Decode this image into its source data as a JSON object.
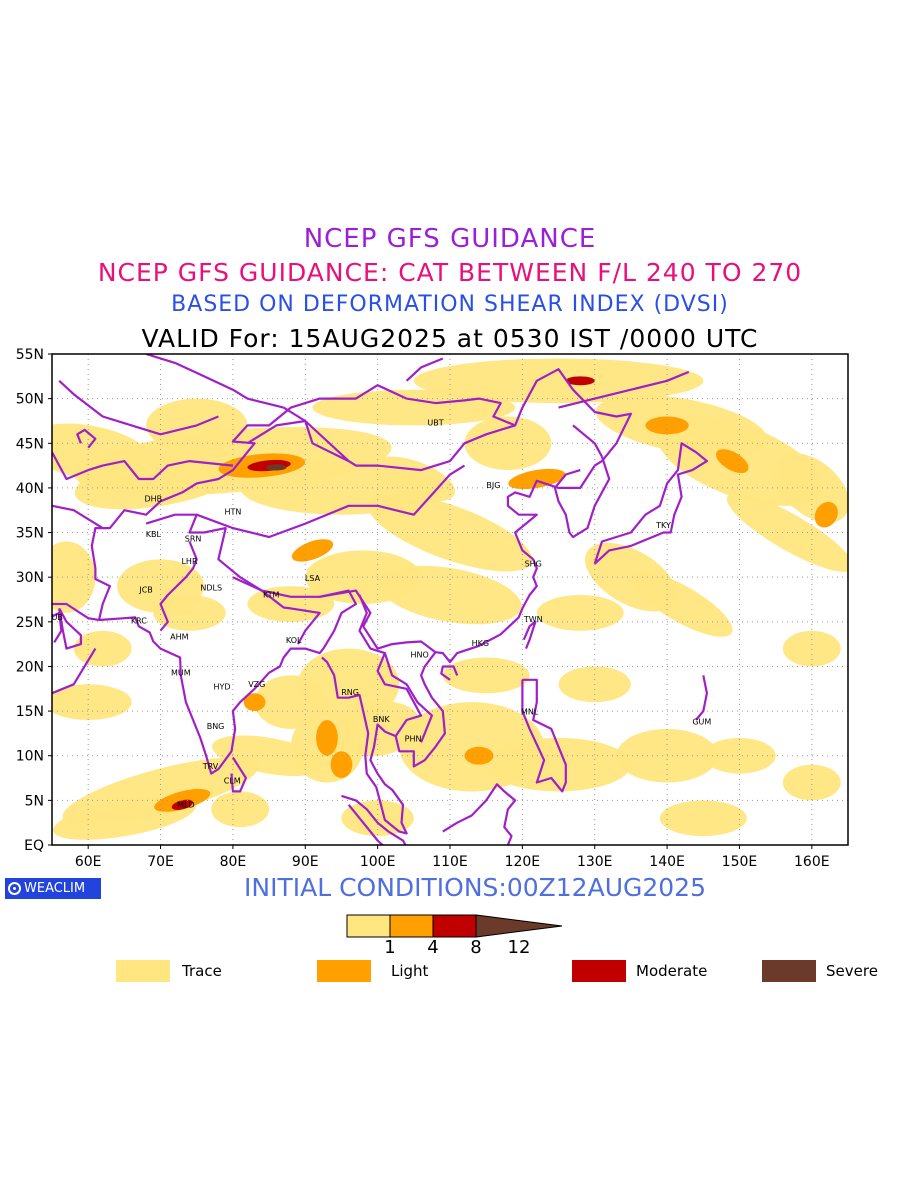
{
  "titles": {
    "line1": "NCEP GFS GUIDANCE",
    "line2": "NCEP GFS GUIDANCE: CAT BETWEEN F/L 240 TO 270",
    "line3": "BASED ON DEFORMATION SHEAR INDEX (DVSI)",
    "line4": "VALID For: 15AUG2025 at 0530 IST /0000 UTC"
  },
  "map": {
    "lat_labels": [
      "55N",
      "50N",
      "45N",
      "40N",
      "35N",
      "30N",
      "25N",
      "20N",
      "15N",
      "10N",
      "5N",
      "EQ"
    ],
    "lon_labels": [
      "60E",
      "70E",
      "80E",
      "90E",
      "100E",
      "110E",
      "120E",
      "130E",
      "140E",
      "150E",
      "160E"
    ],
    "extent": {
      "lon_min": 55,
      "lon_max": 165,
      "lat_min": 0,
      "lat_max": 55
    },
    "stations": [
      {
        "code": "UBT",
        "lon": 108,
        "lat": 47
      },
      {
        "code": "BJG",
        "lon": 116,
        "lat": 40
      },
      {
        "code": "TKY",
        "lon": 139.5,
        "lat": 35.5
      },
      {
        "code": "DHB",
        "lon": 69,
        "lat": 38.5
      },
      {
        "code": "HTN",
        "lon": 80,
        "lat": 37
      },
      {
        "code": "KBL",
        "lon": 69,
        "lat": 34.5
      },
      {
        "code": "SRN",
        "lon": 74.5,
        "lat": 34
      },
      {
        "code": "LHR",
        "lon": 74,
        "lat": 31.5
      },
      {
        "code": "SHG",
        "lon": 121.5,
        "lat": 31.2
      },
      {
        "code": "LSA",
        "lon": 91,
        "lat": 29.6
      },
      {
        "code": "JCB",
        "lon": 68,
        "lat": 28.3
      },
      {
        "code": "NDLS",
        "lon": 77,
        "lat": 28.5
      },
      {
        "code": "KTM",
        "lon": 85.3,
        "lat": 27.7
      },
      {
        "code": "DUB",
        "lon": 55.3,
        "lat": 25.2
      },
      {
        "code": "TWN",
        "lon": 121.5,
        "lat": 25
      },
      {
        "code": "KRC",
        "lon": 67,
        "lat": 24.8
      },
      {
        "code": "AHM",
        "lon": 72.6,
        "lat": 23
      },
      {
        "code": "KOL",
        "lon": 88.4,
        "lat": 22.6
      },
      {
        "code": "HKG",
        "lon": 114.2,
        "lat": 22.3
      },
      {
        "code": "HNO",
        "lon": 105.8,
        "lat": 21
      },
      {
        "code": "MUM",
        "lon": 72.8,
        "lat": 19
      },
      {
        "code": "HYD",
        "lon": 78.5,
        "lat": 17.4
      },
      {
        "code": "VZG",
        "lon": 83.3,
        "lat": 17.7
      },
      {
        "code": "RNG",
        "lon": 96.2,
        "lat": 16.8
      },
      {
        "code": "MNL",
        "lon": 121,
        "lat": 14.6
      },
      {
        "code": "BNK",
        "lon": 100.5,
        "lat": 13.8
      },
      {
        "code": "GUM",
        "lon": 144.8,
        "lat": 13.5
      },
      {
        "code": "BNG",
        "lon": 77.6,
        "lat": 13
      },
      {
        "code": "PHN",
        "lon": 104.9,
        "lat": 11.6
      },
      {
        "code": "TRV",
        "lon": 76.9,
        "lat": 8.5
      },
      {
        "code": "CLM",
        "lon": 79.9,
        "lat": 6.9
      },
      {
        "code": "MLD",
        "lon": 73.5,
        "lat": 4.2
      }
    ],
    "colors": {
      "trace": "#ffe680",
      "light": "#ffa000",
      "moderate": "#c00000",
      "severe": "#6b3a2a",
      "boundary": "#a020c8",
      "grid": "#999999"
    }
  },
  "logo": {
    "text": "WEACLIM"
  },
  "initial_conditions": "INITIAL CONDITIONS:00Z12AUG2025",
  "colorbar": {
    "ticks": [
      "1",
      "4",
      "8",
      "12"
    ],
    "colors": [
      "#ffffff",
      "#ffe680",
      "#ffa000",
      "#c00000",
      "#6b3a2a"
    ]
  },
  "legend": [
    {
      "label": "Trace",
      "color": "#ffe680"
    },
    {
      "label": "Light",
      "color": "#ffa000"
    },
    {
      "label": "Moderate",
      "color": "#c00000"
    },
    {
      "label": "Severe",
      "color": "#6b3a2a"
    }
  ]
}
